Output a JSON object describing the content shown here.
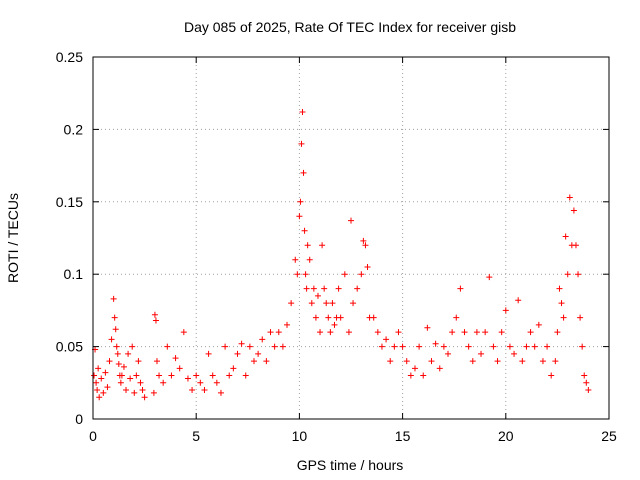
{
  "chart_data": {
    "type": "scatter",
    "title": "Day 085 of 2025, Rate Of TEC Index for receiver gisb",
    "xlabel": "GPS time / hours",
    "ylabel": "ROTI / TECUs",
    "xlim": [
      0,
      25
    ],
    "ylim": [
      0,
      0.25
    ],
    "x_ticks": [
      0,
      5,
      10,
      15,
      20,
      25
    ],
    "x_tick_labels": [
      "0",
      "5",
      "10",
      "15",
      "20",
      "25"
    ],
    "y_ticks": [
      0,
      0.05,
      0.1,
      0.15,
      0.2,
      0.25
    ],
    "y_tick_labels": [
      "0",
      "0.05",
      "0.1",
      "0.15",
      "0.2",
      "0.25"
    ],
    "grid": true,
    "marker": "+",
    "color": "#ff0000",
    "series": [
      {
        "x": [
          0.05,
          0.1,
          0.15,
          0.2,
          0.25,
          0.3,
          0.4,
          0.5,
          0.6,
          0.7,
          0.8,
          0.9,
          1.0,
          1.05,
          1.1,
          1.15,
          1.2,
          1.25,
          1.3,
          1.35,
          1.4,
          1.5,
          1.6,
          1.7,
          1.8,
          1.9,
          2.0,
          2.1,
          2.2,
          2.3,
          2.4,
          2.5,
          2.95,
          3.0,
          3.05,
          3.1,
          3.2,
          3.4,
          3.6,
          3.8,
          4.0,
          4.2,
          4.4,
          4.6,
          4.8,
          5.0,
          5.2,
          5.4,
          5.6,
          5.8,
          6.0,
          6.2,
          6.4,
          6.6,
          6.8,
          7.0,
          7.2,
          7.4,
          7.6,
          7.8,
          8.0,
          8.2,
          8.4,
          8.6,
          8.8,
          9.0,
          9.2,
          9.4,
          9.6,
          9.8,
          9.9,
          10.0,
          10.05,
          10.1,
          10.15,
          10.2,
          10.25,
          10.3,
          10.35,
          10.4,
          10.5,
          10.6,
          10.7,
          10.8,
          10.9,
          11.0,
          11.1,
          11.2,
          11.3,
          11.4,
          11.5,
          11.6,
          11.7,
          11.8,
          11.9,
          12.0,
          12.2,
          12.4,
          12.5,
          12.6,
          12.8,
          13.0,
          13.1,
          13.2,
          13.3,
          13.4,
          13.6,
          13.8,
          14.0,
          14.2,
          14.4,
          14.6,
          14.8,
          15.0,
          15.2,
          15.4,
          15.6,
          15.8,
          16.0,
          16.2,
          16.4,
          16.6,
          16.8,
          17.0,
          17.2,
          17.4,
          17.6,
          17.8,
          18.0,
          18.2,
          18.4,
          18.6,
          18.8,
          19.0,
          19.2,
          19.4,
          19.6,
          19.8,
          20.0,
          20.2,
          20.4,
          20.6,
          20.8,
          21.0,
          21.2,
          21.4,
          21.6,
          21.8,
          22.0,
          22.2,
          22.4,
          22.5,
          22.6,
          22.7,
          22.8,
          22.9,
          23.0,
          23.1,
          23.2,
          23.3,
          23.4,
          23.5,
          23.6,
          23.7,
          23.8,
          23.9,
          24.0
        ],
        "y": [
          0.03,
          0.048,
          0.025,
          0.02,
          0.035,
          0.015,
          0.028,
          0.018,
          0.032,
          0.022,
          0.04,
          0.055,
          0.083,
          0.07,
          0.062,
          0.05,
          0.045,
          0.038,
          0.03,
          0.025,
          0.03,
          0.036,
          0.02,
          0.045,
          0.028,
          0.05,
          0.018,
          0.03,
          0.04,
          0.025,
          0.02,
          0.015,
          0.018,
          0.072,
          0.068,
          0.04,
          0.03,
          0.025,
          0.05,
          0.03,
          0.042,
          0.035,
          0.06,
          0.028,
          0.02,
          0.03,
          0.025,
          0.02,
          0.045,
          0.03,
          0.025,
          0.018,
          0.05,
          0.03,
          0.035,
          0.045,
          0.052,
          0.03,
          0.05,
          0.04,
          0.045,
          0.055,
          0.04,
          0.06,
          0.05,
          0.06,
          0.05,
          0.065,
          0.08,
          0.11,
          0.1,
          0.14,
          0.15,
          0.19,
          0.212,
          0.17,
          0.13,
          0.1,
          0.09,
          0.12,
          0.11,
          0.08,
          0.09,
          0.07,
          0.085,
          0.06,
          0.12,
          0.09,
          0.08,
          0.07,
          0.06,
          0.08,
          0.065,
          0.07,
          0.09,
          0.07,
          0.1,
          0.06,
          0.137,
          0.08,
          0.09,
          0.1,
          0.123,
          0.12,
          0.105,
          0.07,
          0.07,
          0.06,
          0.05,
          0.055,
          0.04,
          0.05,
          0.06,
          0.05,
          0.04,
          0.03,
          0.035,
          0.05,
          0.03,
          0.063,
          0.04,
          0.052,
          0.035,
          0.05,
          0.045,
          0.06,
          0.07,
          0.09,
          0.06,
          0.05,
          0.04,
          0.06,
          0.045,
          0.06,
          0.098,
          0.05,
          0.04,
          0.06,
          0.075,
          0.05,
          0.045,
          0.082,
          0.04,
          0.05,
          0.06,
          0.05,
          0.065,
          0.04,
          0.05,
          0.03,
          0.04,
          0.06,
          0.09,
          0.08,
          0.07,
          0.126,
          0.1,
          0.153,
          0.12,
          0.144,
          0.12,
          0.1,
          0.07,
          0.05,
          0.03,
          0.025,
          0.02
        ]
      }
    ]
  }
}
